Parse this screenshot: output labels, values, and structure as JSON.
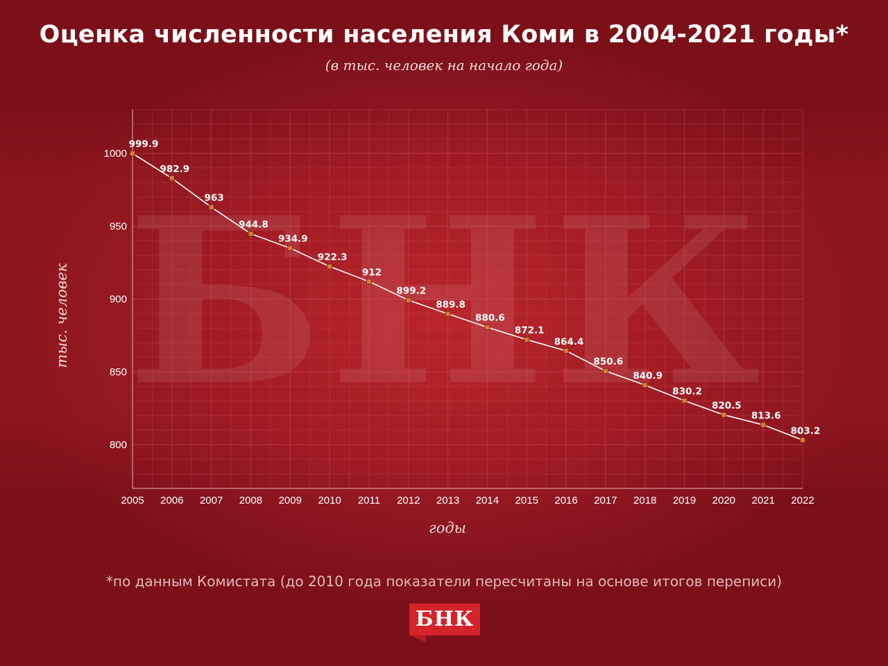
{
  "title": "Оценка численности населения Коми в 2004-2021 годы*",
  "subtitle": "(в тыс. человек на начало года)",
  "footnote": "*по данным Комистата (до 2010 года показатели пересчитаны на основе итогов переписи)",
  "logo": "БНК",
  "watermark": "БНК",
  "colors": {
    "background": "#8a1520",
    "line": "#ffffff",
    "marker_fill": "#e07a3c",
    "grid": "#c4545a"
  },
  "chart_data": {
    "type": "line",
    "title": "Оценка численности населения Коми в 2004-2021 годы*",
    "subtitle": "(в тыс. человек на начало года)",
    "xlabel": "годы",
    "ylabel": "тыс. человек",
    "categories": [
      "2005",
      "2006",
      "2007",
      "2008",
      "2009",
      "2010",
      "2011",
      "2012",
      "2013",
      "2014",
      "2015",
      "2016",
      "2017",
      "2018",
      "2019",
      "2020",
      "2021",
      "2022"
    ],
    "values": [
      999.9,
      982.9,
      963,
      944.8,
      934.9,
      922.3,
      912,
      899.2,
      889.8,
      880.6,
      872.1,
      864.4,
      850.6,
      840.9,
      830.2,
      820.5,
      813.6,
      803.2
    ],
    "value_labels": [
      "999.9",
      "982.9",
      "963",
      "944.8",
      "934.9",
      "922.3",
      "912",
      "899.2",
      "889.8",
      "880.6",
      "872.1",
      "864.4",
      "850.6",
      "840.9",
      "830.2",
      "820.5",
      "813.6",
      "803.2"
    ],
    "y_ticks": [
      800,
      850,
      900,
      950,
      1000
    ],
    "ylim": [
      770,
      1030
    ],
    "grid": true
  }
}
